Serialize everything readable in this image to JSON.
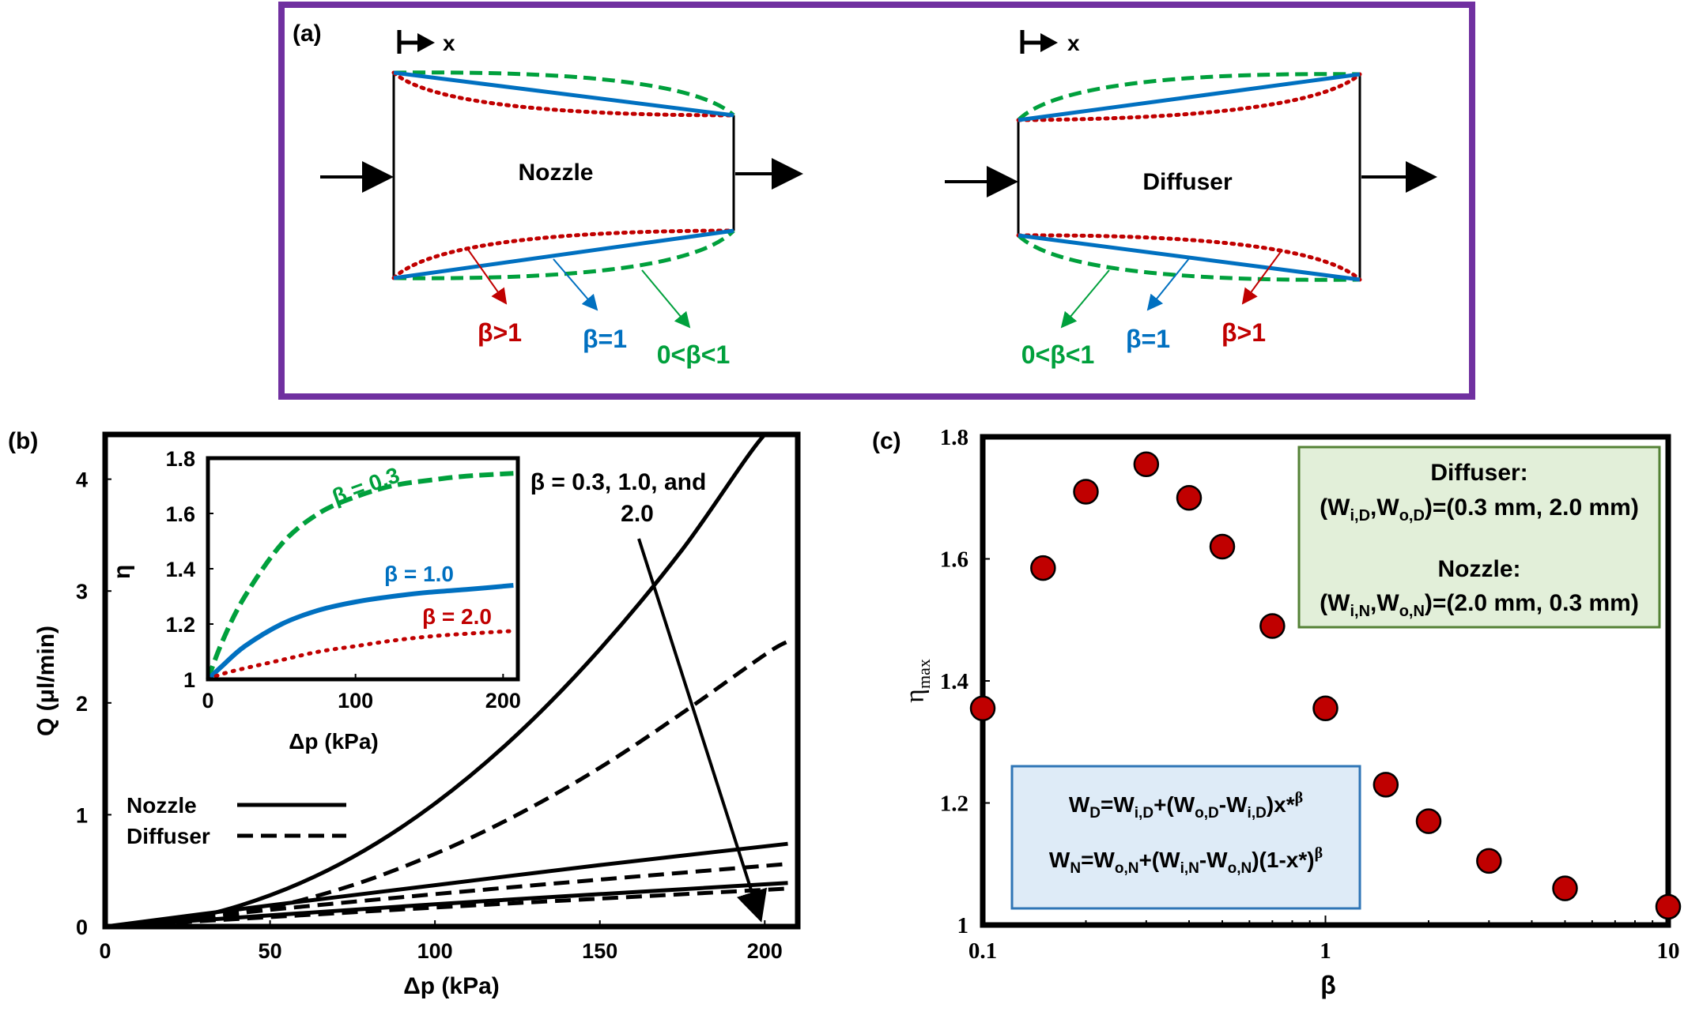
{
  "panel_a": {
    "label": "(a)",
    "x_marker": "x",
    "nozzle_label": "Nozzle",
    "diffuser_label": "Diffuser",
    "nozzle_annotations": [
      "β>1",
      "β=1",
      "0<β<1"
    ],
    "diffuser_annotations": [
      "0<β<1",
      "β=1",
      "β>1"
    ],
    "colors": {
      "frame": "#7030a0",
      "red": "#c00000",
      "blue": "#0070c0",
      "green": "#00a03c"
    }
  },
  "chart_data": [
    {
      "id": "b",
      "type": "line",
      "panel_label": "(b)",
      "xlabel": "Δp (kPa)",
      "ylabel": "Q (μl/min)",
      "xlim": [
        0,
        210
      ],
      "ylim": [
        0,
        4.4
      ],
      "xticks": [
        "0",
        "50",
        "100",
        "150",
        "200"
      ],
      "yticks": [
        "0",
        "1",
        "2",
        "3",
        "4"
      ],
      "annotation": [
        "β = 0.3, 1.0, and",
        "2.0"
      ],
      "legend": [
        {
          "name": "Nozzle",
          "style": "solid"
        },
        {
          "name": "Diffuser",
          "style": "dashed"
        }
      ],
      "series": [
        {
          "name": "Nozzle, β = 0.3",
          "style": "solid",
          "x": [
            0,
            25,
            50,
            75,
            100,
            125,
            150,
            175,
            200,
            207
          ],
          "y": [
            0,
            0.07,
            0.28,
            0.62,
            1.1,
            1.72,
            2.48,
            3.37,
            4.4,
            4.4
          ]
        },
        {
          "name": "Diffuser, β = 0.3",
          "style": "dashed",
          "x": [
            0,
            25,
            50,
            75,
            100,
            125,
            150,
            175,
            200,
            207
          ],
          "y": [
            0,
            0.05,
            0.17,
            0.37,
            0.65,
            1.0,
            1.42,
            1.91,
            2.43,
            2.55
          ]
        },
        {
          "name": "Nozzle, β = 1.0",
          "style": "solid",
          "x": [
            0,
            50,
            100,
            150,
            207
          ],
          "y": [
            0,
            0.19,
            0.37,
            0.55,
            0.74
          ]
        },
        {
          "name": "Diffuser, β = 1.0",
          "style": "dashed",
          "x": [
            0,
            50,
            100,
            150,
            207
          ],
          "y": [
            0,
            0.15,
            0.29,
            0.42,
            0.56
          ]
        },
        {
          "name": "Nozzle, β = 2.0",
          "style": "solid",
          "x": [
            0,
            50,
            100,
            150,
            207
          ],
          "y": [
            0,
            0.1,
            0.2,
            0.29,
            0.39
          ]
        },
        {
          "name": "Diffuser, β = 2.0",
          "style": "dashed",
          "x": [
            0,
            50,
            100,
            150,
            207
          ],
          "y": [
            0,
            0.085,
            0.17,
            0.25,
            0.34
          ]
        }
      ],
      "inset": {
        "type": "line",
        "xlabel": "Δp (kPa)",
        "ylabel": "η",
        "xlim": [
          0,
          210
        ],
        "ylim": [
          1.0,
          1.8
        ],
        "xticks": [
          "0",
          "100",
          "200"
        ],
        "yticks": [
          "1",
          "1.2",
          "1.4",
          "1.6",
          "1.8"
        ],
        "series": [
          {
            "name": "β = 0.3",
            "label": "β = 0.3",
            "color": "#00a03c",
            "style": "dashed",
            "x": [
              0,
              10,
              25,
              50,
              75,
              100,
              125,
              150,
              175,
              207
            ],
            "y": [
              1.0,
              1.14,
              1.3,
              1.49,
              1.6,
              1.66,
              1.7,
              1.72,
              1.735,
              1.745
            ]
          },
          {
            "name": "β = 1.0",
            "label": "β = 1.0",
            "color": "#0070c0",
            "style": "solid",
            "x": [
              0,
              10,
              25,
              50,
              75,
              100,
              125,
              150,
              175,
              207
            ],
            "y": [
              1.0,
              1.05,
              1.12,
              1.2,
              1.25,
              1.28,
              1.3,
              1.315,
              1.325,
              1.34
            ]
          },
          {
            "name": "β = 2.0",
            "label": "β = 2.0",
            "color": "#c00000",
            "style": "dotted",
            "x": [
              0,
              10,
              25,
              50,
              75,
              100,
              125,
              150,
              175,
              207
            ],
            "y": [
              1.0,
              1.02,
              1.04,
              1.07,
              1.1,
              1.12,
              1.14,
              1.155,
              1.165,
              1.175
            ]
          }
        ]
      }
    },
    {
      "id": "c",
      "type": "scatter",
      "panel_label": "(c)",
      "xlabel": "β",
      "ylabel": "η",
      "ylabel_sub": "max",
      "xscale": "log",
      "xlim": [
        0.1,
        10
      ],
      "ylim": [
        1.0,
        1.8
      ],
      "xticks": [
        "0.1",
        "1",
        "10"
      ],
      "yticks": [
        "1",
        "1.2",
        "1.4",
        "1.6",
        "1.8"
      ],
      "marker_color": "#c00000",
      "x": [
        0.1,
        0.15,
        0.2,
        0.3,
        0.4,
        0.5,
        0.7,
        1.0,
        1.5,
        2.0,
        3.0,
        5.0,
        10.0
      ],
      "y": [
        1.355,
        1.585,
        1.71,
        1.755,
        1.7,
        1.62,
        1.49,
        1.355,
        1.23,
        1.17,
        1.105,
        1.06,
        1.03
      ],
      "box_top": {
        "diffuser_title": "Diffuser:",
        "diffuser_eq": "(Wi,D,Wo,D)=(0.3  mm,  2.0  mm)",
        "nozzle_title": "Nozzle:",
        "nozzle_eq": "(Wi,N,Wo,N)=(2.0  mm,  0.3  mm)"
      },
      "box_bottom": {
        "eq_d": "WD=Wi,D+(Wo,D-Wi,D)x*β",
        "eq_n": "WN=Wo,N+(Wi,N-Wo,N)(1-x*)β"
      }
    }
  ]
}
